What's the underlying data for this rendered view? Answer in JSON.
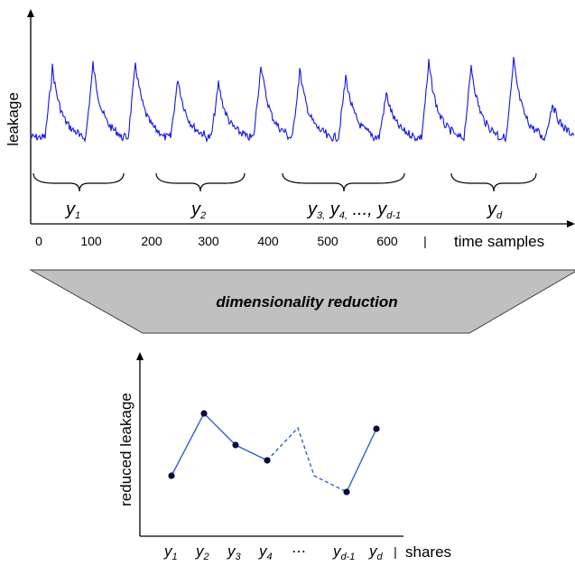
{
  "top_plot": {
    "ylabel": "leakage",
    "xlabel": "time samples",
    "separator": "|",
    "x_ticks": [
      "0",
      "100",
      "200",
      "300",
      "400",
      "500",
      "600"
    ],
    "groups": [
      {
        "base": "y",
        "sub": "1"
      },
      {
        "base": "y",
        "sub": "2"
      },
      {
        "base": "y",
        "sub": "3,",
        "rest": [
          {
            "base": " y",
            "sub": "4,"
          },
          {
            "base": " ..., y",
            "sub": "d-1"
          }
        ]
      },
      {
        "base": "y",
        "sub": "d"
      }
    ]
  },
  "reduction_label": "dimensionality reduction",
  "bottom_plot": {
    "ylabel": "reduced leakage",
    "xlabel": "shares",
    "separator": "|",
    "ellipsis": "⋯",
    "x_labels": [
      {
        "base": "y",
        "sub": "1"
      },
      {
        "base": "y",
        "sub": "2"
      },
      {
        "base": "y",
        "sub": "3"
      },
      {
        "base": "y",
        "sub": "4"
      },
      {
        "base": "y",
        "sub": "d-1"
      },
      {
        "base": "y",
        "sub": "d"
      }
    ]
  },
  "colors": {
    "trace": "#1515e6",
    "line": "#2f5fd0",
    "band_fill": "#c0c0c0",
    "point": "#0a0a3a"
  }
}
